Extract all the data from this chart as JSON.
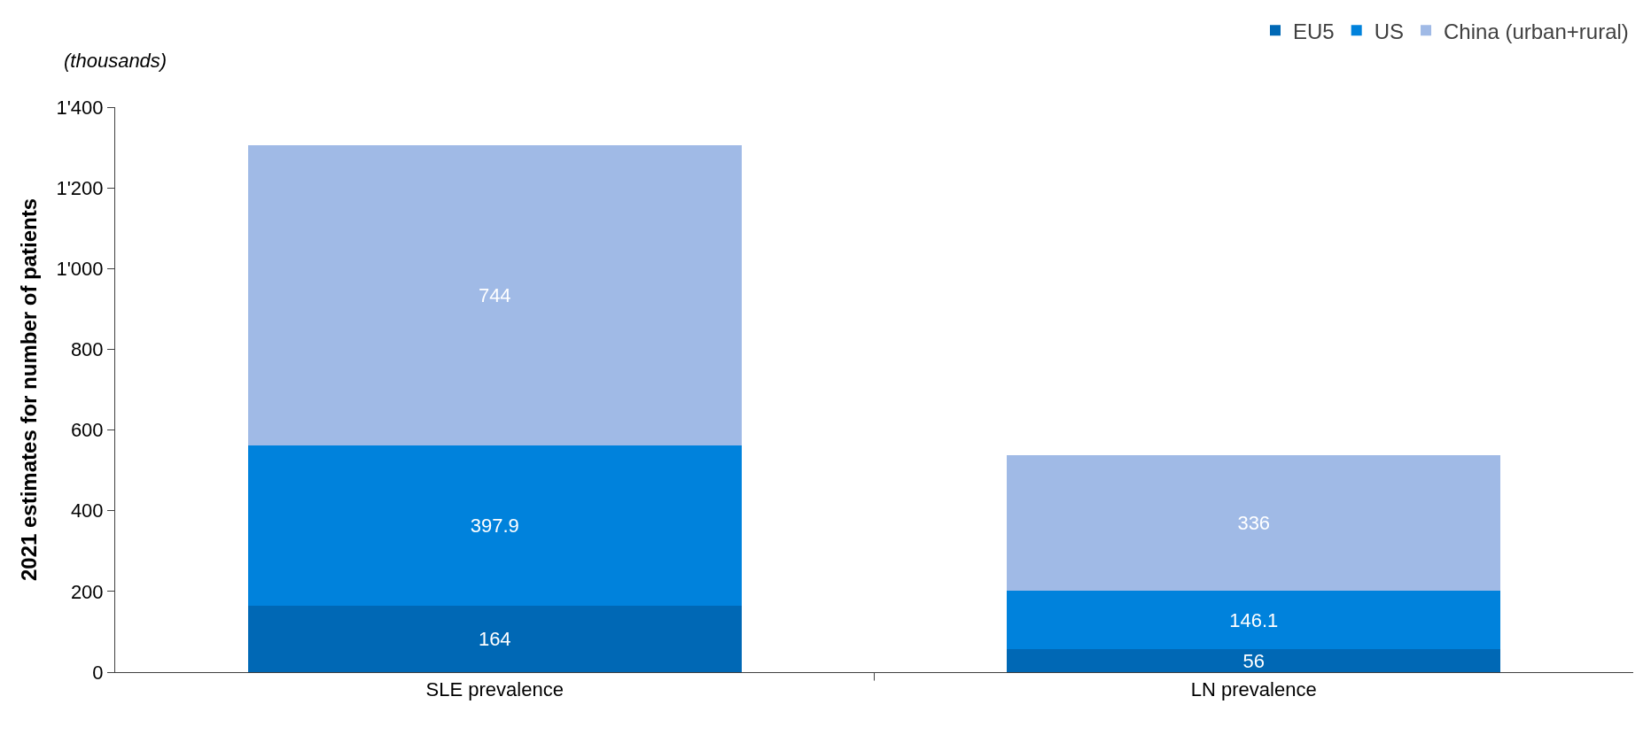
{
  "chart_data": {
    "type": "bar",
    "ylabel": "2021 estimates for number of patients",
    "annotations": [
      "(thousands)"
    ],
    "categories": [
      "SLE prevalence",
      "LN prevalence"
    ],
    "series": [
      {
        "name": "EU5",
        "color": "#0068b5",
        "values": [
          164,
          56
        ]
      },
      {
        "name": "US",
        "color": "#0082dc",
        "values": [
          397.9,
          146.1
        ]
      },
      {
        "name": "China (urban+rural)",
        "color": "#a0bae6",
        "values": [
          744,
          336
        ]
      }
    ],
    "stacked": true,
    "data_labels": true,
    "ylim": [
      0,
      1400
    ],
    "yticks": [
      0,
      200,
      400,
      600,
      800,
      {
        "value": 1000,
        "label": "1'000"
      },
      {
        "value": 1200,
        "label": "1'200"
      },
      {
        "value": 1400,
        "label": "1'400"
      }
    ],
    "grid": false,
    "legend": "top right"
  }
}
